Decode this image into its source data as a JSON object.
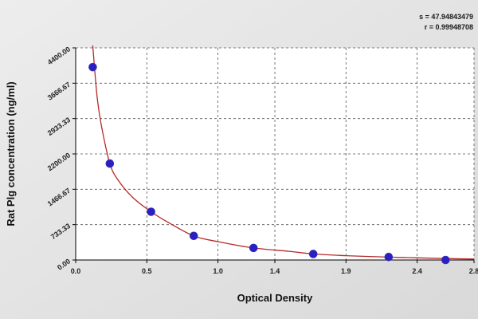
{
  "stats": {
    "s_label": "s = 47.94843479",
    "r_label": "r = 0.99948708"
  },
  "chart_data": {
    "type": "scatter",
    "title": "",
    "xlabel": "Optical Density",
    "ylabel": "Rat Plg concentration (ng/ml)",
    "xlim": [
      0,
      2.8
    ],
    "ylim": [
      0,
      4400
    ],
    "x_ticks": [
      0,
      0.5,
      1.0,
      1.4,
      1.9,
      2.4,
      2.8
    ],
    "x_tick_labels": [
      "0.0",
      "0.5",
      "1.0",
      "1.4",
      "1.9",
      "2.4",
      "2.8"
    ],
    "y_ticks": [
      0,
      733.33,
      1466.67,
      2200,
      2933.33,
      3666.67,
      4400
    ],
    "y_tick_labels": [
      "0.00",
      "733.33",
      "1466.67",
      "2200.00",
      "2933.33",
      "3666.67",
      "4400.00"
    ],
    "grid": true,
    "series": [
      {
        "x": [
          0.12,
          0.24,
          0.53,
          0.83,
          1.25,
          1.67,
          2.2,
          2.6
        ],
        "y": [
          4000,
          2000,
          1000,
          500,
          250,
          125,
          62.5,
          0
        ],
        "color": "#2b1fc4"
      }
    ],
    "fit": {
      "color": "#b52a2a",
      "x": [
        0.12,
        0.15,
        0.18,
        0.24,
        0.3,
        0.4,
        0.53,
        0.65,
        0.83,
        1.0,
        1.25,
        1.5,
        1.67,
        1.9,
        2.2,
        2.4,
        2.6,
        2.8
      ],
      "y": [
        4450,
        3400,
        2800,
        2000,
        1650,
        1300,
        1000,
        780,
        500,
        380,
        250,
        180,
        125,
        90,
        60,
        45,
        30,
        20
      ]
    }
  }
}
